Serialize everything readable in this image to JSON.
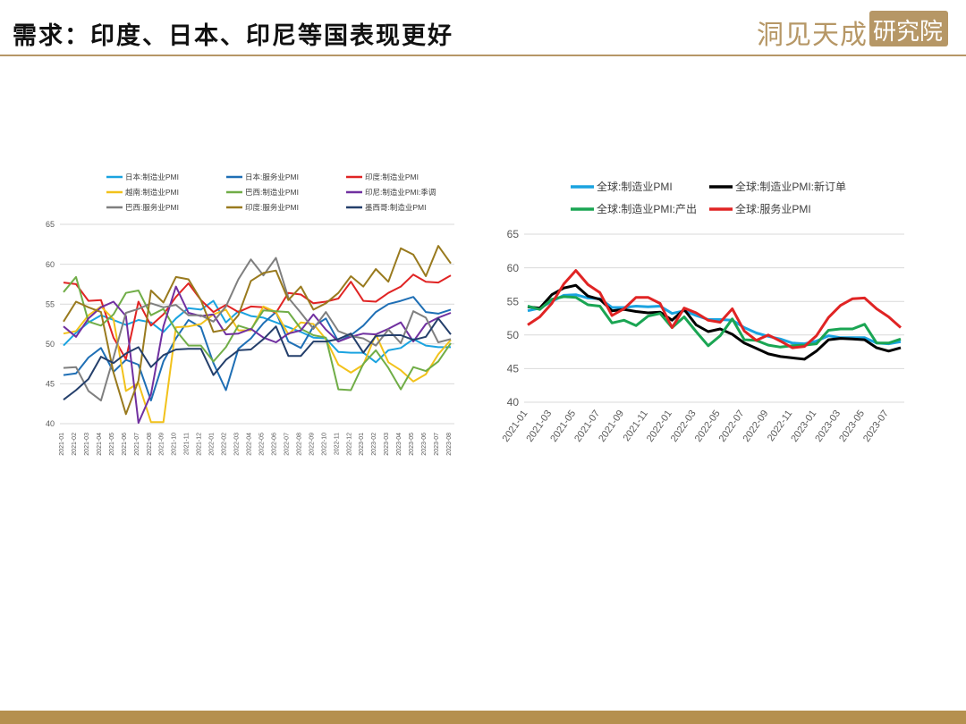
{
  "header": {
    "title": "需求：印度、日本、印尼等国表现更好",
    "logo_text": "洞见天成",
    "logo_box_text": "研究院"
  },
  "colors": {
    "brand_gold": "#b69766",
    "footer": "#b5904f"
  },
  "chart_data": [
    {
      "type": "line",
      "title": "",
      "xlabel": "",
      "ylabel": "",
      "ylim": [
        40,
        65
      ],
      "yticks": [
        40,
        45,
        50,
        55,
        60,
        65
      ],
      "grid": "horizontal",
      "legend_position": "top",
      "categories": [
        "2021-01",
        "2021-02",
        "2021-03",
        "2021-04",
        "2021-05",
        "2021-06",
        "2021-07",
        "2021-08",
        "2021-09",
        "2021-10",
        "2021-11",
        "2021-12",
        "2022-01",
        "2022-02",
        "2022-03",
        "2022-04",
        "2022-05",
        "2022-06",
        "2022-07",
        "2022-08",
        "2022-09",
        "2022-10",
        "2022-11",
        "2022-12",
        "2023-01",
        "2023-02",
        "2023-03",
        "2023-04",
        "2023-05",
        "2023-06",
        "2023-07",
        "2023-08"
      ],
      "series": [
        {
          "name": "日本:制造业PMI",
          "color": "#1aa3e0",
          "values": [
            49.8,
            51.4,
            52.7,
            53.6,
            53.0,
            52.4,
            53.0,
            52.7,
            51.5,
            53.2,
            54.5,
            54.3,
            55.4,
            52.7,
            54.1,
            53.5,
            53.3,
            52.7,
            52.1,
            51.5,
            50.8,
            50.7,
            49.0,
            48.9,
            48.9,
            47.7,
            49.2,
            49.5,
            50.6,
            49.8,
            49.6,
            49.6
          ]
        },
        {
          "name": "日本:服务业PMI",
          "color": "#1f6fb5",
          "values": [
            46.1,
            46.3,
            48.3,
            49.5,
            46.5,
            48.0,
            47.4,
            42.9,
            47.8,
            50.7,
            53.0,
            52.1,
            47.6,
            44.2,
            49.4,
            50.7,
            52.6,
            54.0,
            50.3,
            49.5,
            52.2,
            53.2,
            50.3,
            51.1,
            52.3,
            54.0,
            55.0,
            55.4,
            55.9,
            54.0,
            53.8,
            54.3
          ]
        },
        {
          "name": "印度:制造业PMI",
          "color": "#e02424",
          "values": [
            57.7,
            57.5,
            55.4,
            55.5,
            50.8,
            48.1,
            55.3,
            52.3,
            53.7,
            55.9,
            57.6,
            55.5,
            54.0,
            54.9,
            54.0,
            54.7,
            54.6,
            53.9,
            56.4,
            56.2,
            55.1,
            55.3,
            55.7,
            57.8,
            55.4,
            55.3,
            56.4,
            57.2,
            58.7,
            57.8,
            57.7,
            58.6
          ]
        },
        {
          "name": "越南:制造业PMI",
          "color": "#f2c21b",
          "values": [
            51.3,
            51.6,
            53.6,
            54.7,
            53.1,
            44.1,
            45.1,
            40.2,
            40.2,
            52.1,
            52.2,
            52.5,
            53.7,
            54.3,
            51.7,
            51.7,
            54.7,
            54.0,
            51.2,
            52.7,
            52.5,
            50.6,
            47.4,
            46.4,
            47.4,
            51.2,
            47.7,
            46.7,
            45.3,
            46.2,
            48.7,
            50.5
          ]
        },
        {
          "name": "巴西:制造业PMI",
          "color": "#70ad47",
          "values": [
            56.5,
            58.4,
            52.8,
            52.3,
            53.7,
            56.4,
            56.7,
            53.6,
            54.4,
            51.7,
            49.8,
            49.8,
            47.8,
            49.6,
            52.3,
            51.8,
            54.2,
            54.1,
            54.0,
            51.9,
            51.1,
            50.8,
            44.3,
            44.2,
            47.5,
            49.2,
            47.0,
            44.3,
            47.1,
            46.6,
            47.8,
            50.1
          ]
        },
        {
          "name": "印尼:制造业PMI:季调",
          "color": "#7030a0",
          "values": [
            52.2,
            50.9,
            53.2,
            54.6,
            55.3,
            53.5,
            40.1,
            43.7,
            52.2,
            57.2,
            53.9,
            53.5,
            53.7,
            51.2,
            51.3,
            51.9,
            50.8,
            50.2,
            51.3,
            51.7,
            53.7,
            51.8,
            50.3,
            50.9,
            51.3,
            51.2,
            51.9,
            52.7,
            50.3,
            52.5,
            53.3,
            53.9
          ]
        },
        {
          "name": "巴西:服务业PMI",
          "color": "#7f7f7f",
          "values": [
            47.0,
            47.1,
            44.1,
            42.9,
            48.3,
            53.9,
            54.4,
            55.1,
            54.6,
            54.9,
            53.6,
            53.6,
            52.8,
            54.7,
            58.1,
            60.6,
            58.6,
            60.8,
            55.8,
            53.9,
            51.9,
            54.0,
            51.6,
            51.0,
            50.7,
            49.8,
            51.8,
            50.1,
            54.1,
            53.3,
            50.2,
            50.6
          ]
        },
        {
          "name": "印度:服务业PMI",
          "color": "#997a1e",
          "values": [
            52.8,
            55.3,
            54.6,
            54.0,
            46.4,
            41.2,
            45.4,
            56.7,
            55.2,
            58.4,
            58.1,
            55.5,
            51.5,
            51.8,
            53.6,
            57.9,
            58.9,
            59.2,
            55.5,
            57.2,
            54.3,
            55.1,
            56.4,
            58.5,
            57.2,
            59.4,
            57.8,
            62.0,
            61.2,
            58.5,
            62.3,
            60.1
          ]
        },
        {
          "name": "墨西哥:制造业PMI",
          "color": "#243f6b",
          "values": [
            43.0,
            44.2,
            45.6,
            48.4,
            47.6,
            48.8,
            49.6,
            47.1,
            48.6,
            49.3,
            49.4,
            49.4,
            46.1,
            48.0,
            49.2,
            49.3,
            50.6,
            52.2,
            48.5,
            48.5,
            50.3,
            50.3,
            50.6,
            51.3,
            48.9,
            51.0,
            51.1,
            51.1,
            50.5,
            50.9,
            53.2,
            51.2
          ]
        }
      ]
    },
    {
      "type": "line",
      "title": "",
      "xlabel": "",
      "ylabel": "",
      "ylim": [
        40,
        65
      ],
      "yticks": [
        40,
        45,
        50,
        55,
        60,
        65
      ],
      "grid": "horizontal",
      "legend_position": "top",
      "categories": [
        "2021-01",
        "2021-02",
        "2021-03",
        "2021-04",
        "2021-05",
        "2021-06",
        "2021-07",
        "2021-08",
        "2021-09",
        "2021-10",
        "2021-11",
        "2021-12",
        "2022-01",
        "2022-02",
        "2022-03",
        "2022-04",
        "2022-05",
        "2022-06",
        "2022-07",
        "2022-08",
        "2022-09",
        "2022-10",
        "2022-11",
        "2022-12",
        "2023-01",
        "2023-02",
        "2023-03",
        "2023-04",
        "2023-05",
        "2023-06",
        "2023-07",
        "2023-08"
      ],
      "tick_labels": [
        "2021-01",
        "2021-03",
        "2021-05",
        "2021-07",
        "2021-09",
        "2021-11",
        "2022-01",
        "2022-03",
        "2022-05",
        "2022-07",
        "2022-09",
        "2022-11",
        "2023-01",
        "2023-03",
        "2023-05",
        "2023-07"
      ],
      "series": [
        {
          "name": "全球:制造业PMI",
          "color": "#1aa3e0",
          "values": [
            53.6,
            54.0,
            55.0,
            55.9,
            56.0,
            55.5,
            55.4,
            54.1,
            54.1,
            54.3,
            54.2,
            54.3,
            53.2,
            53.6,
            52.9,
            52.3,
            52.3,
            52.2,
            51.1,
            50.3,
            49.8,
            49.4,
            48.8,
            48.7,
            49.1,
            49.9,
            49.6,
            49.6,
            49.6,
            48.8,
            48.7,
            49.0
          ]
        },
        {
          "name": "全球:制造业PMI:新订单",
          "color": "#000000",
          "values": [
            54.2,
            54.0,
            56.0,
            57.0,
            57.4,
            55.8,
            55.3,
            53.6,
            53.8,
            53.5,
            53.3,
            53.4,
            52.2,
            53.8,
            51.5,
            50.5,
            50.9,
            50.1,
            48.8,
            48.0,
            47.2,
            46.8,
            46.6,
            46.4,
            47.6,
            49.3,
            49.5,
            49.4,
            49.3,
            48.1,
            47.6,
            48.1
          ]
        },
        {
          "name": "全球:制造业PMI:产出",
          "color": "#1aa553",
          "values": [
            54.3,
            53.8,
            55.3,
            55.7,
            55.6,
            54.5,
            54.3,
            51.8,
            52.2,
            51.4,
            52.8,
            53.2,
            51.1,
            52.7,
            50.5,
            48.4,
            49.9,
            52.4,
            49.3,
            49.2,
            48.5,
            48.2,
            48.4,
            48.5,
            48.7,
            50.7,
            50.9,
            50.9,
            51.6,
            48.8,
            48.8,
            49.4
          ]
        },
        {
          "name": "全球:服务业PMI",
          "color": "#e02424",
          "values": [
            51.5,
            52.7,
            54.7,
            57.6,
            59.6,
            57.5,
            56.3,
            52.9,
            53.9,
            55.6,
            55.6,
            54.7,
            51.1,
            54.0,
            53.3,
            52.2,
            51.9,
            53.9,
            50.6,
            49.2,
            50.0,
            49.1,
            48.1,
            48.3,
            49.9,
            52.6,
            54.4,
            55.4,
            55.5,
            53.9,
            52.7,
            51.1
          ]
        }
      ]
    }
  ]
}
